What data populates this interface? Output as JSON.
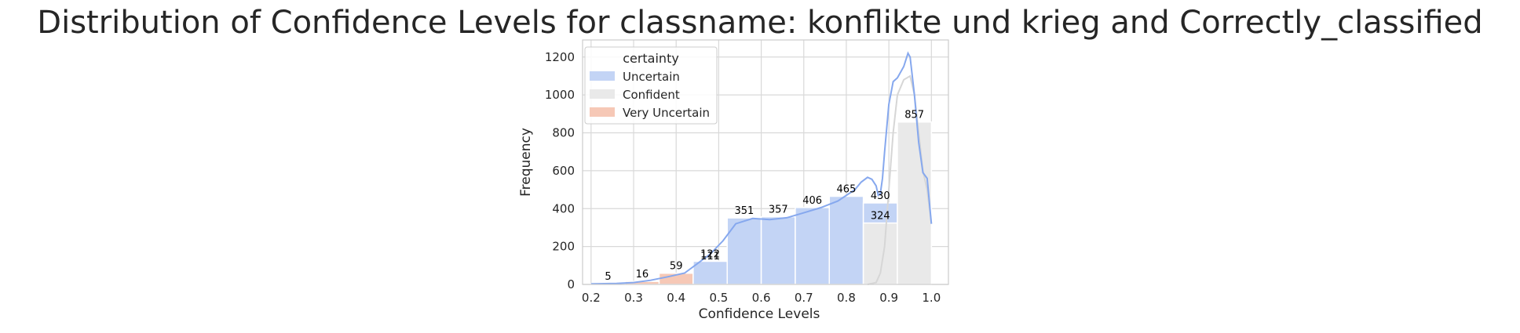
{
  "chart_data": {
    "type": "bar",
    "title": "Distribution of Confidence Levels for classname: konflikte und krieg and Correctly_classified",
    "xlabel": "Confidence Levels",
    "ylabel": "Frequency",
    "xlim": [
      0.18,
      1.04
    ],
    "ylim": [
      0,
      1290
    ],
    "xticks": [
      0.2,
      0.3,
      0.4,
      0.5,
      0.6,
      0.7,
      0.8,
      0.9,
      1.0
    ],
    "xtick_labels": [
      "0.2",
      "0.3",
      "0.4",
      "0.5",
      "0.6",
      "0.7",
      "0.8",
      "0.9",
      "1.0"
    ],
    "yticks": [
      0,
      200,
      400,
      600,
      800,
      1000,
      1200
    ],
    "ytick_labels": [
      "0",
      "200",
      "400",
      "600",
      "800",
      "1000",
      "1200"
    ],
    "grid": true,
    "legend": {
      "title": "certainty",
      "position": "top-left",
      "entries": [
        "Uncertain",
        "Confident",
        "Very Uncertain"
      ]
    },
    "colors": {
      "Uncertain": "#c3d4f5",
      "Confident": "#e9e9e9",
      "Very Uncertain": "#f6c8b6",
      "kde_uncertain": "#86a8ee",
      "kde_confident": "#d6d6d6"
    },
    "series": [
      {
        "name": "Very Uncertain",
        "bins": [
          {
            "x0": 0.2,
            "x1": 0.28,
            "value": 5
          },
          {
            "x0": 0.28,
            "x1": 0.36,
            "value": 16
          },
          {
            "x0": 0.36,
            "x1": 0.44,
            "value": 59
          },
          {
            "x0": 0.44,
            "x1": 0.52,
            "value": 111
          }
        ]
      },
      {
        "name": "Uncertain",
        "bins": [
          {
            "x0": 0.44,
            "x1": 0.52,
            "value": 122
          },
          {
            "x0": 0.52,
            "x1": 0.6,
            "value": 351
          },
          {
            "x0": 0.6,
            "x1": 0.68,
            "value": 357
          },
          {
            "x0": 0.68,
            "x1": 0.76,
            "value": 406
          },
          {
            "x0": 0.76,
            "x1": 0.84,
            "value": 465
          },
          {
            "x0": 0.84,
            "x1": 0.92,
            "value": 430
          }
        ]
      },
      {
        "name": "Confident",
        "bins": [
          {
            "x0": 0.84,
            "x1": 0.92,
            "value": 324
          },
          {
            "x0": 0.92,
            "x1": 1.0,
            "value": 857
          }
        ]
      }
    ],
    "bar_labels": [
      {
        "x": 0.24,
        "value": 5,
        "text": "5"
      },
      {
        "x": 0.32,
        "value": 16,
        "text": "16"
      },
      {
        "x": 0.4,
        "value": 59,
        "text": "59"
      },
      {
        "x": 0.48,
        "value": 122,
        "text": "122"
      },
      {
        "x": 0.48,
        "value": 111,
        "text": "111"
      },
      {
        "x": 0.56,
        "value": 351,
        "text": "351"
      },
      {
        "x": 0.64,
        "value": 357,
        "text": "357"
      },
      {
        "x": 0.72,
        "value": 406,
        "text": "406"
      },
      {
        "x": 0.8,
        "value": 465,
        "text": "465"
      },
      {
        "x": 0.88,
        "value": 430,
        "text": "430"
      },
      {
        "x": 0.88,
        "value": 324,
        "text": "324"
      },
      {
        "x": 0.96,
        "value": 857,
        "text": "857"
      }
    ],
    "kde": [
      {
        "name": "Uncertain",
        "points": [
          [
            0.2,
            3
          ],
          [
            0.26,
            5
          ],
          [
            0.3,
            10
          ],
          [
            0.34,
            22
          ],
          [
            0.38,
            40
          ],
          [
            0.42,
            60
          ],
          [
            0.45,
            110
          ],
          [
            0.48,
            160
          ],
          [
            0.51,
            230
          ],
          [
            0.54,
            320
          ],
          [
            0.58,
            348
          ],
          [
            0.62,
            342
          ],
          [
            0.66,
            352
          ],
          [
            0.7,
            378
          ],
          [
            0.74,
            405
          ],
          [
            0.78,
            440
          ],
          [
            0.82,
            500
          ],
          [
            0.835,
            540
          ],
          [
            0.85,
            565
          ],
          [
            0.86,
            555
          ],
          [
            0.87,
            520
          ],
          [
            0.875,
            470
          ],
          [
            0.88,
            480
          ],
          [
            0.885,
            560
          ],
          [
            0.89,
            700
          ],
          [
            0.9,
            950
          ],
          [
            0.91,
            1070
          ],
          [
            0.92,
            1090
          ],
          [
            0.935,
            1150
          ],
          [
            0.945,
            1220
          ],
          [
            0.95,
            1200
          ],
          [
            0.96,
            1000
          ],
          [
            0.97,
            750
          ],
          [
            0.98,
            590
          ],
          [
            0.99,
            560
          ],
          [
            1.0,
            320
          ]
        ]
      },
      {
        "name": "Confident",
        "points": [
          [
            0.85,
            0
          ],
          [
            0.87,
            10
          ],
          [
            0.88,
            60
          ],
          [
            0.89,
            200
          ],
          [
            0.9,
            500
          ],
          [
            0.91,
            800
          ],
          [
            0.92,
            1000
          ],
          [
            0.935,
            1080
          ],
          [
            0.95,
            1100
          ],
          [
            0.96,
            1000
          ],
          [
            0.97,
            800
          ],
          [
            0.98,
            600
          ],
          [
            0.99,
            500
          ],
          [
            1.0,
            320
          ]
        ]
      }
    ]
  }
}
